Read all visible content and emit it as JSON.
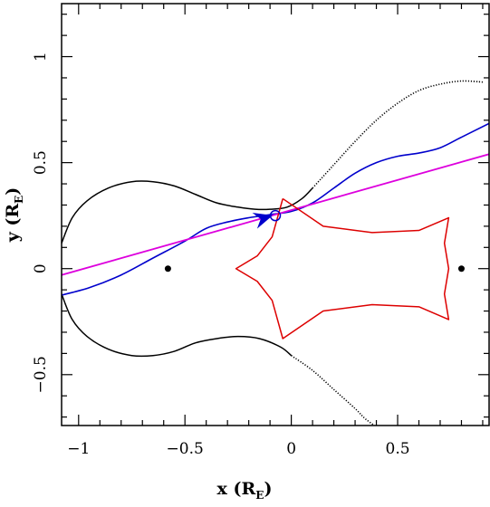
{
  "chart_data": {
    "type": "line",
    "title": "",
    "xlabel": {
      "main": "x (R",
      "sub": "E",
      "close": ")"
    },
    "ylabel": {
      "main": "y (R",
      "sub": "E",
      "close": ")"
    },
    "xlim": [
      -1.08,
      0.93
    ],
    "ylim": [
      -0.74,
      1.25
    ],
    "xticks": {
      "values": [
        -1,
        -0.5,
        0,
        0.5
      ],
      "labels": [
        "−1",
        "−0.5",
        "0",
        "0.5"
      ]
    },
    "yticks": {
      "values": [
        -0.5,
        0,
        0.5,
        1
      ],
      "labels": [
        "−0.5",
        "0",
        "0.5",
        "1"
      ]
    },
    "grid": false,
    "colors": {
      "critical": "#000000",
      "trajectory": "#0000cc",
      "source_line": "#dd00dd",
      "caustic": "#dd0000"
    },
    "series": [
      {
        "id": "critical-upper",
        "color": "#000000",
        "style": "solid-then-dotted",
        "dotted_from_x": 0.1,
        "points": [
          [
            -1.08,
            0.12
          ],
          [
            -1.03,
            0.24
          ],
          [
            -0.96,
            0.32
          ],
          [
            -0.86,
            0.38
          ],
          [
            -0.75,
            0.41
          ],
          [
            -0.65,
            0.41
          ],
          [
            -0.55,
            0.39
          ],
          [
            -0.45,
            0.35
          ],
          [
            -0.35,
            0.31
          ],
          [
            -0.25,
            0.29
          ],
          [
            -0.17,
            0.28
          ],
          [
            -0.1,
            0.28
          ],
          [
            -0.02,
            0.29
          ],
          [
            0.05,
            0.33
          ],
          [
            0.1,
            0.38
          ],
          [
            0.2,
            0.49
          ],
          [
            0.3,
            0.6
          ],
          [
            0.4,
            0.7
          ],
          [
            0.5,
            0.78
          ],
          [
            0.6,
            0.84
          ],
          [
            0.7,
            0.87
          ],
          [
            0.8,
            0.885
          ],
          [
            0.9,
            0.88
          ]
        ]
      },
      {
        "id": "critical-lower",
        "color": "#000000",
        "style": "solid-then-dotted",
        "dotted_from_x": 0.0,
        "points": [
          [
            -1.08,
            -0.12
          ],
          [
            -1.03,
            -0.24
          ],
          [
            -0.96,
            -0.32
          ],
          [
            -0.86,
            -0.38
          ],
          [
            -0.75,
            -0.41
          ],
          [
            -0.65,
            -0.41
          ],
          [
            -0.55,
            -0.39
          ],
          [
            -0.45,
            -0.35
          ],
          [
            -0.35,
            -0.33
          ],
          [
            -0.25,
            -0.32
          ],
          [
            -0.15,
            -0.33
          ],
          [
            -0.05,
            -0.37
          ],
          [
            0.0,
            -0.41
          ],
          [
            0.1,
            -0.48
          ],
          [
            0.2,
            -0.57
          ],
          [
            0.3,
            -0.66
          ],
          [
            0.35,
            -0.71
          ],
          [
            0.42,
            -0.76
          ]
        ]
      },
      {
        "id": "trajectory",
        "color": "#0000cc",
        "style": "solid",
        "points": [
          [
            -1.08,
            -0.125
          ],
          [
            -0.95,
            -0.09
          ],
          [
            -0.8,
            -0.03
          ],
          [
            -0.65,
            0.05
          ],
          [
            -0.5,
            0.13
          ],
          [
            -0.4,
            0.19
          ],
          [
            -0.3,
            0.22
          ],
          [
            -0.2,
            0.24
          ],
          [
            -0.1,
            0.255
          ],
          [
            0.0,
            0.27
          ],
          [
            0.1,
            0.31
          ],
          [
            0.2,
            0.38
          ],
          [
            0.3,
            0.45
          ],
          [
            0.4,
            0.5
          ],
          [
            0.5,
            0.53
          ],
          [
            0.6,
            0.545
          ],
          [
            0.7,
            0.57
          ],
          [
            0.8,
            0.62
          ],
          [
            0.93,
            0.685
          ]
        ]
      },
      {
        "id": "source-line",
        "color": "#dd00dd",
        "style": "solid",
        "points": [
          [
            -1.08,
            -0.03
          ],
          [
            0.93,
            0.54
          ]
        ]
      },
      {
        "id": "caustic",
        "color": "#dd0000",
        "style": "solid",
        "points": [
          [
            -0.04,
            0.33
          ],
          [
            -0.09,
            0.15
          ],
          [
            -0.16,
            0.06
          ],
          [
            -0.26,
            0.0
          ],
          [
            -0.16,
            -0.06
          ],
          [
            -0.09,
            -0.15
          ],
          [
            -0.04,
            -0.33
          ],
          [
            0.15,
            -0.2
          ],
          [
            0.38,
            -0.17
          ],
          [
            0.6,
            -0.18
          ],
          [
            0.74,
            -0.24
          ],
          [
            0.72,
            -0.12
          ],
          [
            0.74,
            0.0
          ],
          [
            0.72,
            0.12
          ],
          [
            0.74,
            0.24
          ],
          [
            0.6,
            0.18
          ],
          [
            0.38,
            0.17
          ],
          [
            0.15,
            0.2
          ],
          [
            -0.04,
            0.33
          ]
        ]
      }
    ],
    "lens_positions": [
      [
        -0.58,
        0.0
      ],
      [
        0.8,
        0.0
      ]
    ],
    "marker_circle": [
      -0.075,
      0.25
    ],
    "arrow": {
      "at": [
        -0.125,
        0.24
      ],
      "direction": [
        1,
        0.3
      ]
    }
  }
}
